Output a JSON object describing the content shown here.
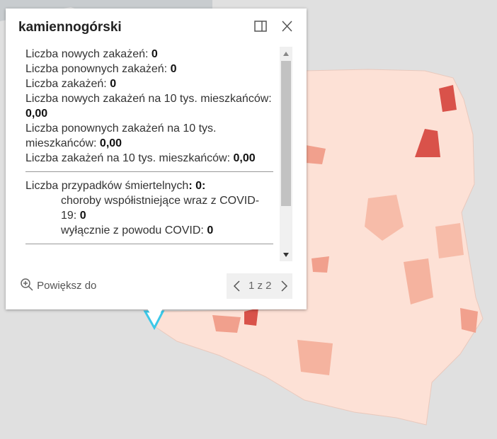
{
  "popup": {
    "title": "kamiennogórski",
    "fields": [
      {
        "label": "Liczba nowych zakażeń: ",
        "value": "0"
      },
      {
        "label": "Liczba ponownych zakażeń: ",
        "value": "0"
      },
      {
        "label": "Liczba zakażeń: ",
        "value": "0"
      },
      {
        "label": "Liczba nowych zakażeń na 10 tys. mieszkańców: ",
        "value": "0,00"
      },
      {
        "label": "Liczba ponownych zakażeń na 10 tys. mieszkańców: ",
        "value": "0,00"
      },
      {
        "label": "Liczba zakażeń na 10 tys. mieszkańców: ",
        "value": "0,00"
      }
    ],
    "deaths": {
      "label": "Liczba przypadków śmiertelnych",
      "value": ": 0:",
      "items": [
        {
          "label": "choroby współistniejące wraz z COVID-19: ",
          "value": "0"
        },
        {
          "label": "wyłącznie z powodu COVID: ",
          "value": "0"
        }
      ]
    },
    "zoom": "Powiększ do",
    "pager": "1 z 2"
  }
}
